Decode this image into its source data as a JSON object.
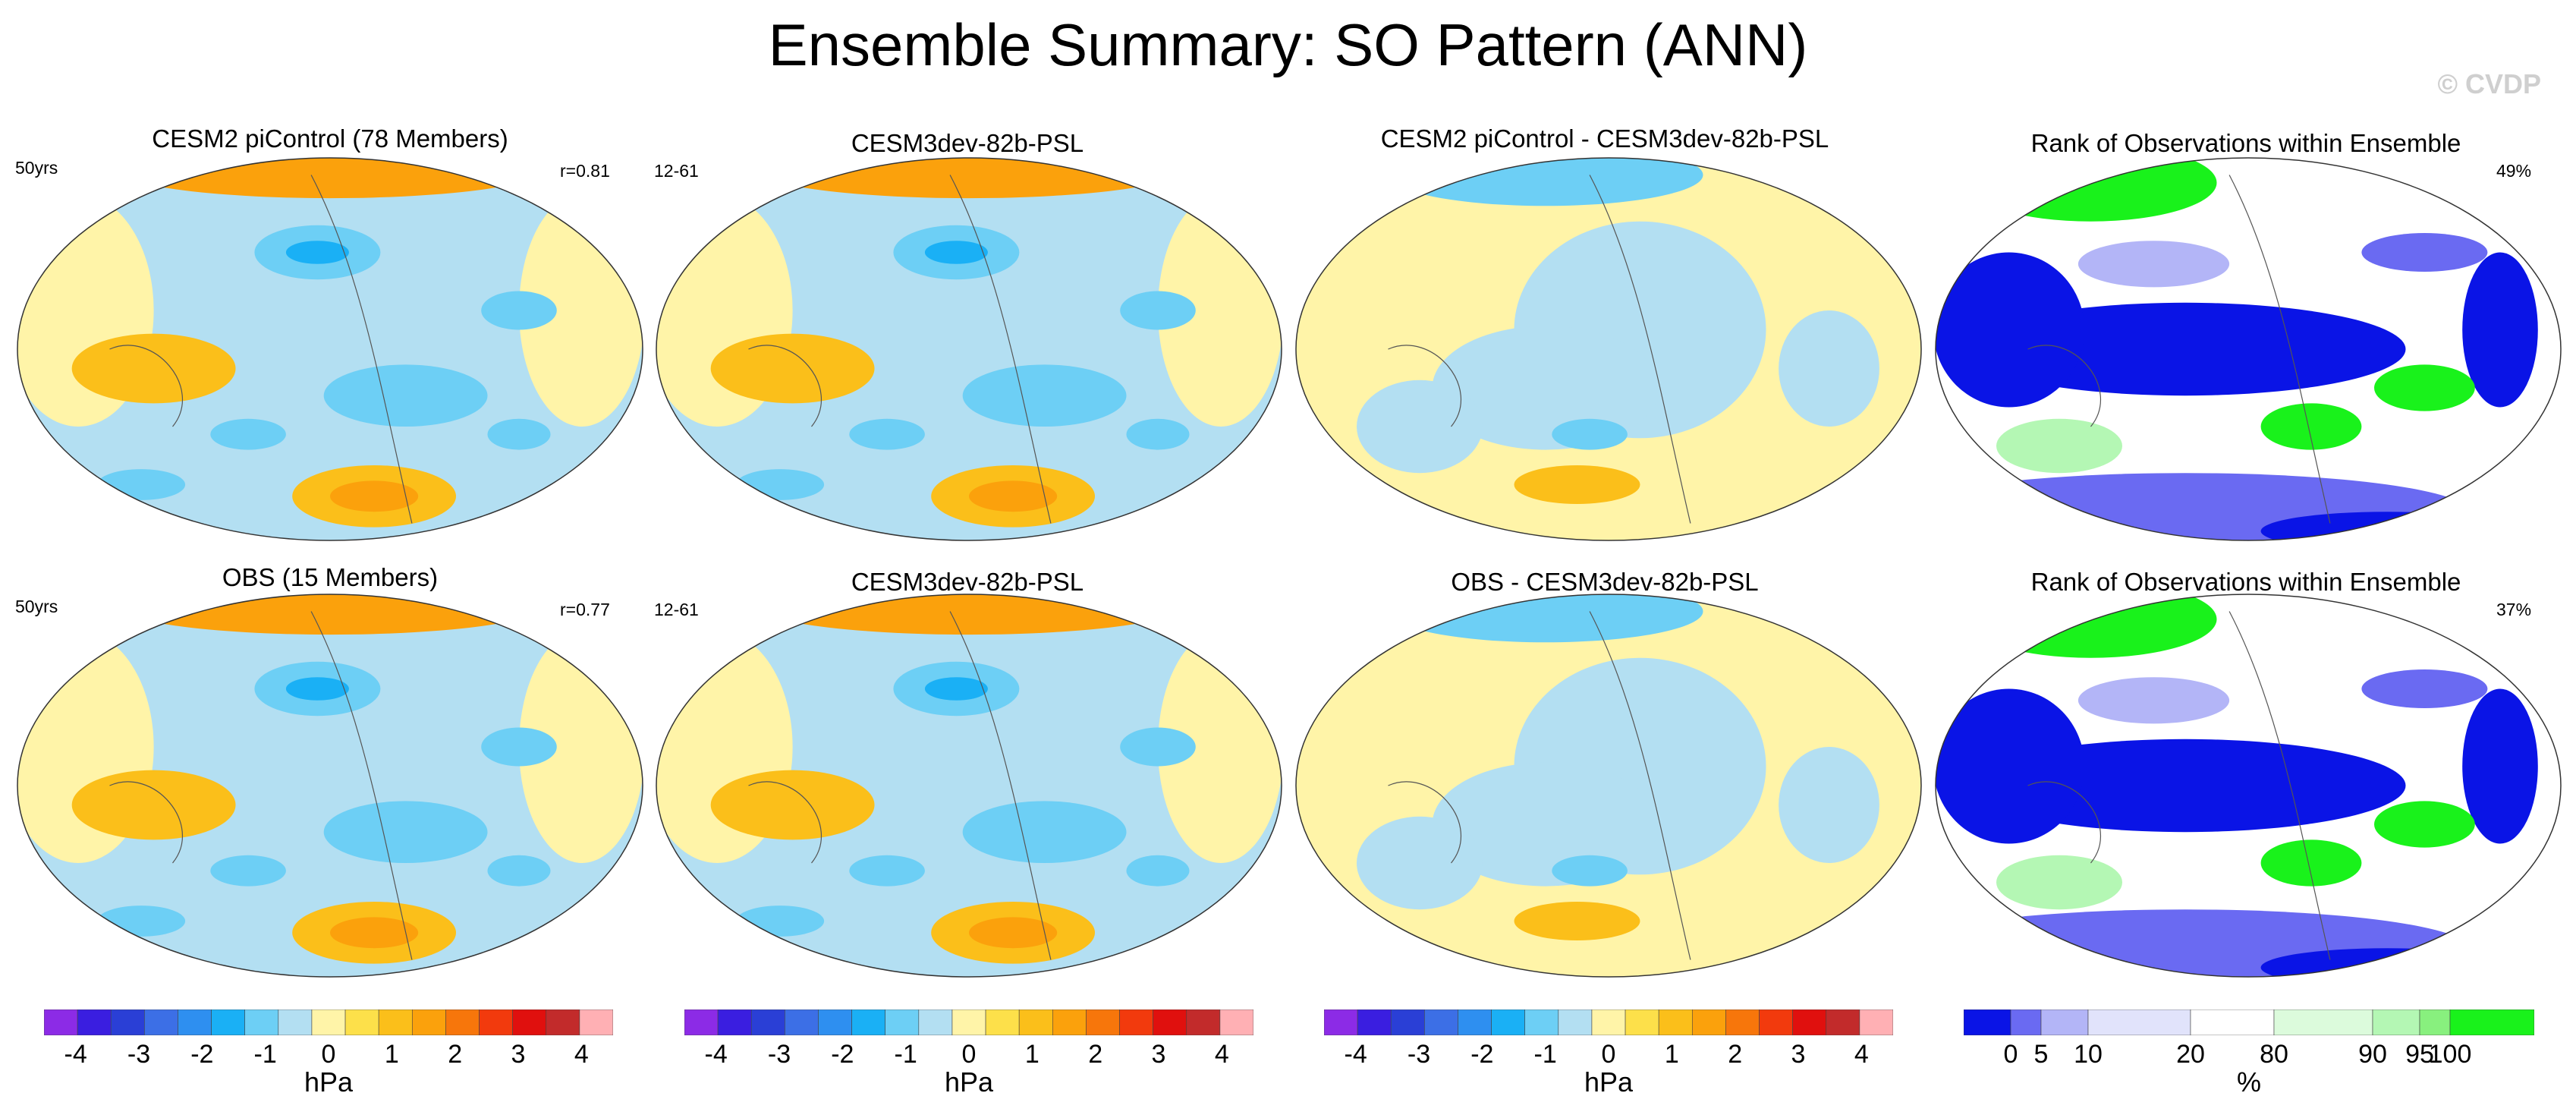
{
  "title": "Ensemble Summary: SO Pattern (ANN)",
  "watermark": "© CVDP",
  "colors": {
    "diverging": [
      "#8c2be6",
      "#3a1ee0",
      "#2a3fd6",
      "#3c6fe6",
      "#2e8ff0",
      "#1ab0f5",
      "#6dcff5",
      "#b3dff2",
      "#fff4a8",
      "#fde04a",
      "#fbbf1a",
      "#fba10c",
      "#f7760b",
      "#f23a0d",
      "#e0100e",
      "#c22b2b",
      "#ffb0b4"
    ],
    "rank": [
      "#0a14e6",
      "#6a6af2",
      "#b3b5f7",
      "#e1e3fb",
      "#ffffff",
      "#dcfbdc",
      "#b4f7b4",
      "#88f07e",
      "#19f21b"
    ]
  },
  "panels": [
    {
      "title": "CESM2 piControl (78 Members)",
      "left_label": "50yrs",
      "right_label": "r=0.81",
      "kind": "pattern",
      "mid": [
        0,
        400
      ]
    },
    {
      "title": "CESM3dev-82b-PSL",
      "left_label": "12-61",
      "right_label": "",
      "kind": "pattern",
      "mid": [
        0,
        400
      ]
    },
    {
      "title": "CESM2 piControl - CESM3dev-82b-PSL",
      "left_label": "",
      "right_label": "",
      "kind": "difference",
      "mid": [
        0,
        400
      ]
    },
    {
      "title": "Rank of Observations within Ensemble",
      "left_label": "",
      "right_label": "49%",
      "kind": "rank",
      "mid": [
        0,
        400
      ]
    },
    {
      "title": "OBS (15 Members)",
      "left_label": "50yrs",
      "right_label": "r=0.77",
      "kind": "pattern",
      "mid": [
        0,
        400
      ]
    },
    {
      "title": "CESM3dev-82b-PSL",
      "left_label": "12-61",
      "right_label": "",
      "kind": "pattern",
      "mid": [
        0,
        400
      ]
    },
    {
      "title": "OBS - CESM3dev-82b-PSL",
      "left_label": "",
      "right_label": "",
      "kind": "difference",
      "mid": [
        0,
        400
      ]
    },
    {
      "title": "Rank of Observations within Ensemble",
      "left_label": "",
      "right_label": "37%",
      "kind": "rank",
      "mid": [
        0,
        400
      ]
    }
  ],
  "chart_data": [
    {
      "type": "heatmap",
      "title": "Ensemble Summary: SO Pattern (ANN)",
      "colorbar": {
        "ticks": [
          "-4",
          "-3",
          "-2",
          "-1",
          "0",
          "1",
          "2",
          "3",
          "4"
        ],
        "unit": "hPa",
        "range": [
          -4.5,
          4.5
        ]
      }
    },
    {
      "type": "heatmap",
      "colorbar": {
        "ticks": [
          "-4",
          "-3",
          "-2",
          "-1",
          "0",
          "1",
          "2",
          "3",
          "4"
        ],
        "unit": "hPa",
        "range": [
          -4.5,
          4.5
        ]
      }
    },
    {
      "type": "heatmap",
      "colorbar": {
        "ticks": [
          "-4",
          "-3",
          "-2",
          "-1",
          "0",
          "1",
          "2",
          "3",
          "4"
        ],
        "unit": "hPa",
        "range": [
          -4.5,
          4.5
        ]
      }
    },
    {
      "type": "heatmap",
      "colorbar": {
        "ticks": [
          "0",
          "5",
          "10",
          "20",
          "80",
          "90",
          "95",
          "100"
        ],
        "unit": "%",
        "bounds": [
          0,
          5,
          10,
          20,
          80,
          90,
          95,
          100
        ]
      }
    }
  ]
}
